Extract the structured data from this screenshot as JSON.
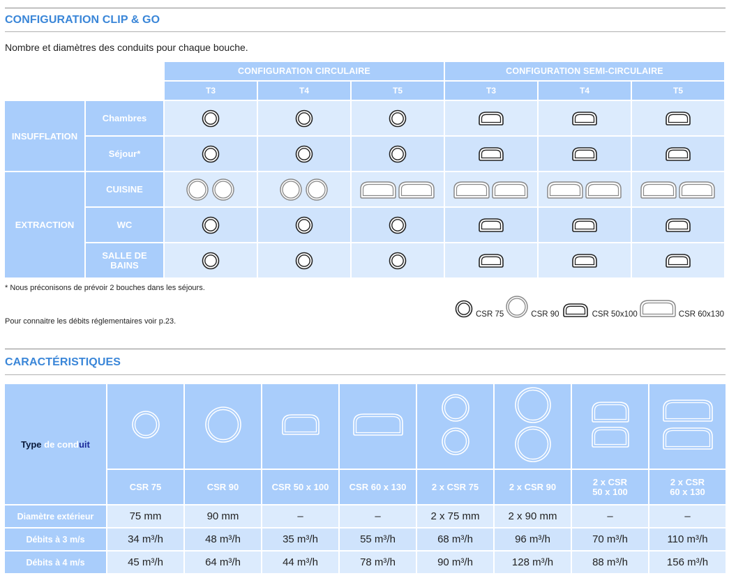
{
  "section1": {
    "title": "CONFIGURATION CLIP & GO",
    "subtitle": "Nombre et diamètres des conduits pour chaque bouche.",
    "headers": {
      "circ": "CONFIGURATION CIRCULAIRE",
      "semi": "CONFIGURATION SEMI-CIRCULAIRE",
      "sub": [
        "T3",
        "T4",
        "T5",
        "T3",
        "T4",
        "T5"
      ]
    },
    "groups": {
      "insufflation": "INSUFFLATION",
      "extraction": "EXTRACTION"
    },
    "rooms": {
      "chambres": "Chambres",
      "sejour": "Séjour*",
      "cuisine": "CUISINE",
      "wc": "WC",
      "sdb1": "SALLE DE",
      "sdb2": "BAINS"
    },
    "footnote1": "* Nous préconisons de prévoir 2 bouches dans les séjours.",
    "footnote2": "Pour connaitre les débits réglementaires voir p.23.",
    "legend": [
      "CSR 75",
      "CSR 90",
      "CSR 50x100",
      "CSR 60x130"
    ]
  },
  "section2": {
    "title": "CARACTÉRISTIQUES",
    "type_label": {
      "p1": "Type ",
      "p2": "de cond",
      "p3": "uit"
    },
    "columns": [
      {
        "name": "CSR 75",
        "name2": ""
      },
      {
        "name": "CSR 90",
        "name2": ""
      },
      {
        "name": "CSR 50 x 100",
        "name2": ""
      },
      {
        "name": "CSR 60 x 130",
        "name2": ""
      },
      {
        "name": "2 x CSR 75",
        "name2": ""
      },
      {
        "name": "2 x CSR 90",
        "name2": ""
      },
      {
        "name": "2 x CSR",
        "name2": "50 x 100"
      },
      {
        "name": "2 x CSR",
        "name2": "60 x 130"
      }
    ],
    "rows": [
      {
        "label": "Diamètre extérieur",
        "values": [
          "75 mm",
          "90 mm",
          "–",
          "–",
          "2 x 75 mm",
          "2 x 90 mm",
          "–",
          "–"
        ]
      },
      {
        "label": "Débits à 3 m/s",
        "values": [
          "34 m³/h",
          "48 m³/h",
          "35 m³/h",
          "55 m³/h",
          "68 m³/h",
          "96 m³/h",
          "70 m³/h",
          "110 m³/h"
        ]
      },
      {
        "label": "Débits à 4 m/s",
        "values": [
          "45 m³/h",
          "64 m³/h",
          "44 m³/h",
          "78 m³/h",
          "90 m³/h",
          "128 m³/h",
          "88 m³/h",
          "156 m³/h"
        ]
      }
    ]
  }
}
